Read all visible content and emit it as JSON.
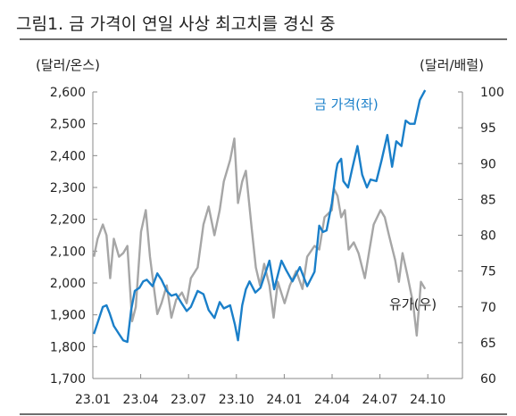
{
  "figure": {
    "title": "그림1.  금 가격이 연일 사상 최고치를 경신 중",
    "left_unit": "(달러/온스)",
    "right_unit": "(달러/배럴)"
  },
  "chart_data": {
    "type": "line",
    "x_ticks": [
      "23.01",
      "23.04",
      "23.07",
      "23.10",
      "24.01",
      "24.04",
      "24.07",
      "24.10"
    ],
    "x_range": [
      "2023-01-01",
      "2024-11-15"
    ],
    "y_left": {
      "ticks": [
        "1,700",
        "1,800",
        "1,900",
        "2,000",
        "2,100",
        "2,200",
        "2,300",
        "2,400",
        "2,500",
        "2,600"
      ],
      "ylim": [
        1700,
        2600
      ]
    },
    "y_right": {
      "ticks": [
        "60",
        "65",
        "70",
        "75",
        "80",
        "85",
        "90",
        "95",
        "100"
      ],
      "ylim": [
        60,
        100
      ]
    },
    "grid": false,
    "legend": "inline labels",
    "colors": {
      "gold": "#1a7fc9",
      "oil": "#a6a6a6"
    },
    "series": [
      {
        "name": "금 가격(좌)",
        "axis": "left",
        "points": [
          [
            "2023-01-03",
            1840
          ],
          [
            "2023-01-10",
            1875
          ],
          [
            "2023-01-20",
            1925
          ],
          [
            "2023-01-27",
            1930
          ],
          [
            "2023-02-02",
            1905
          ],
          [
            "2023-02-10",
            1865
          ],
          [
            "2023-02-20",
            1840
          ],
          [
            "2023-02-28",
            1820
          ],
          [
            "2023-03-08",
            1815
          ],
          [
            "2023-03-15",
            1915
          ],
          [
            "2023-03-22",
            1975
          ],
          [
            "2023-03-31",
            1985
          ],
          [
            "2023-04-07",
            2005
          ],
          [
            "2023-04-14",
            2010
          ],
          [
            "2023-04-25",
            1990
          ],
          [
            "2023-05-04",
            2030
          ],
          [
            "2023-05-12",
            2010
          ],
          [
            "2023-05-22",
            1975
          ],
          [
            "2023-05-31",
            1960
          ],
          [
            "2023-06-09",
            1965
          ],
          [
            "2023-06-20",
            1935
          ],
          [
            "2023-06-29",
            1912
          ],
          [
            "2023-07-07",
            1925
          ],
          [
            "2023-07-20",
            1975
          ],
          [
            "2023-07-31",
            1965
          ],
          [
            "2023-08-10",
            1915
          ],
          [
            "2023-08-21",
            1890
          ],
          [
            "2023-08-31",
            1940
          ],
          [
            "2023-09-08",
            1920
          ],
          [
            "2023-09-20",
            1930
          ],
          [
            "2023-09-29",
            1870
          ],
          [
            "2023-10-05",
            1820
          ],
          [
            "2023-10-13",
            1930
          ],
          [
            "2023-10-20",
            1980
          ],
          [
            "2023-10-27",
            2005
          ],
          [
            "2023-11-07",
            1970
          ],
          [
            "2023-11-17",
            1985
          ],
          [
            "2023-11-28",
            2040
          ],
          [
            "2023-12-04",
            2070
          ],
          [
            "2023-12-13",
            1980
          ],
          [
            "2023-12-27",
            2070
          ],
          [
            "2024-01-05",
            2040
          ],
          [
            "2024-01-17",
            2005
          ],
          [
            "2024-01-31",
            2050
          ],
          [
            "2024-02-14",
            1990
          ],
          [
            "2024-02-28",
            2035
          ],
          [
            "2024-03-08",
            2180
          ],
          [
            "2024-03-15",
            2160
          ],
          [
            "2024-03-22",
            2165
          ],
          [
            "2024-04-01",
            2250
          ],
          [
            "2024-04-09",
            2350
          ],
          [
            "2024-04-12",
            2375
          ],
          [
            "2024-04-19",
            2390
          ],
          [
            "2024-04-23",
            2320
          ],
          [
            "2024-05-02",
            2300
          ],
          [
            "2024-05-10",
            2360
          ],
          [
            "2024-05-20",
            2430
          ],
          [
            "2024-05-29",
            2340
          ],
          [
            "2024-06-07",
            2300
          ],
          [
            "2024-06-14",
            2325
          ],
          [
            "2024-06-25",
            2320
          ],
          [
            "2024-07-05",
            2385
          ],
          [
            "2024-07-16",
            2465
          ],
          [
            "2024-07-25",
            2365
          ],
          [
            "2024-08-02",
            2445
          ],
          [
            "2024-08-12",
            2430
          ],
          [
            "2024-08-20",
            2510
          ],
          [
            "2024-08-28",
            2500
          ],
          [
            "2024-09-06",
            2500
          ],
          [
            "2024-09-16",
            2575
          ],
          [
            "2024-09-26",
            2660
          ]
        ]
      },
      {
        "name": "유가(우)",
        "axis": "right",
        "points": [
          [
            "2023-01-03",
            77
          ],
          [
            "2023-01-10",
            79.5
          ],
          [
            "2023-01-20",
            81.5
          ],
          [
            "2023-01-27",
            80
          ],
          [
            "2023-02-03",
            74
          ],
          [
            "2023-02-10",
            79.5
          ],
          [
            "2023-02-20",
            77
          ],
          [
            "2023-02-28",
            77.5
          ],
          [
            "2023-03-08",
            78.5
          ],
          [
            "2023-03-17",
            68
          ],
          [
            "2023-03-24",
            70
          ],
          [
            "2023-04-03",
            80.5
          ],
          [
            "2023-04-12",
            83.5
          ],
          [
            "2023-04-20",
            77
          ],
          [
            "2023-05-04",
            69
          ],
          [
            "2023-05-12",
            70.5
          ],
          [
            "2023-05-22",
            73
          ],
          [
            "2023-05-31",
            68.5
          ],
          [
            "2023-06-09",
            71
          ],
          [
            "2023-06-20",
            72
          ],
          [
            "2023-06-29",
            70.5
          ],
          [
            "2023-07-07",
            74
          ],
          [
            "2023-07-20",
            75.5
          ],
          [
            "2023-07-31",
            81.5
          ],
          [
            "2023-08-10",
            84
          ],
          [
            "2023-08-21",
            80
          ],
          [
            "2023-08-31",
            83.5
          ],
          [
            "2023-09-08",
            87.5
          ],
          [
            "2023-09-20",
            90.5
          ],
          [
            "2023-09-28",
            93.5
          ],
          [
            "2023-10-05",
            84.5
          ],
          [
            "2023-10-13",
            87.5
          ],
          [
            "2023-10-20",
            89
          ],
          [
            "2023-10-31",
            81
          ],
          [
            "2023-11-08",
            75.5
          ],
          [
            "2023-11-16",
            73
          ],
          [
            "2023-11-24",
            76
          ],
          [
            "2023-12-04",
            73
          ],
          [
            "2023-12-12",
            68.5
          ],
          [
            "2023-12-20",
            73.5
          ],
          [
            "2024-01-02",
            70.5
          ],
          [
            "2024-01-12",
            73
          ],
          [
            "2024-01-24",
            75
          ],
          [
            "2024-02-05",
            72.5
          ],
          [
            "2024-02-14",
            77
          ],
          [
            "2024-02-28",
            78.5
          ],
          [
            "2024-03-08",
            78
          ],
          [
            "2024-03-18",
            82.5
          ],
          [
            "2024-04-01",
            83.5
          ],
          [
            "2024-04-05",
            86.5
          ],
          [
            "2024-04-12",
            85.5
          ],
          [
            "2024-04-19",
            82.5
          ],
          [
            "2024-04-26",
            83.5
          ],
          [
            "2024-05-03",
            78
          ],
          [
            "2024-05-13",
            79
          ],
          [
            "2024-05-22",
            77.5
          ],
          [
            "2024-06-03",
            74
          ],
          [
            "2024-06-12",
            78
          ],
          [
            "2024-06-20",
            81.5
          ],
          [
            "2024-07-03",
            83.5
          ],
          [
            "2024-07-11",
            82.5
          ],
          [
            "2024-07-19",
            80
          ],
          [
            "2024-07-31",
            76.5
          ],
          [
            "2024-08-07",
            73.5
          ],
          [
            "2024-08-14",
            77.5
          ],
          [
            "2024-08-23",
            74.5
          ],
          [
            "2024-09-03",
            70.5
          ],
          [
            "2024-09-10",
            66
          ],
          [
            "2024-09-18",
            73.5
          ],
          [
            "2024-09-26",
            72.5
          ]
        ]
      }
    ]
  }
}
